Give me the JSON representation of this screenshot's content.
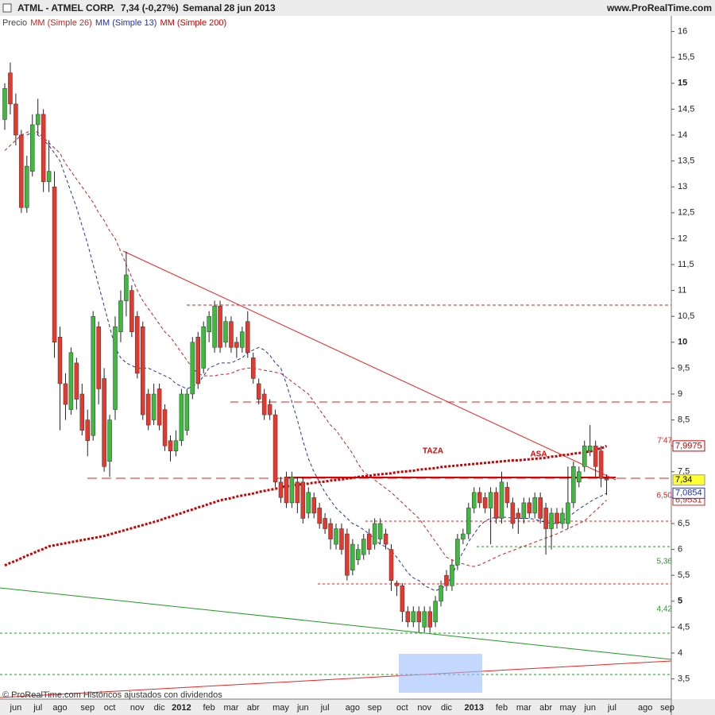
{
  "chart_data": {
    "type": "candlestick",
    "symbol": "ATML - ATMEL CORP.",
    "quote": "7,34 (-0,27%)",
    "period": "Semanal",
    "date": "28 jun 2013",
    "site": "www.ProRealTime.com",
    "footer": "© ProRealTime.com  Históricos ajustados con dividendos",
    "annotations": [
      "TAZA",
      "ASA",
      "7'47",
      "6,50",
      "5,36",
      "4,42"
    ],
    "ylim": [
      3.11,
      16.27
    ],
    "yticks": [
      {
        "value": 3.5,
        "label": "3,5"
      },
      4,
      {
        "value": 4.5,
        "label": "4,5"
      },
      5,
      {
        "value": 5.5,
        "label": "5,5"
      },
      6,
      {
        "value": 6.5,
        "label": "6,5"
      },
      7,
      {
        "value": 7.5,
        "label": "7,5"
      },
      8,
      {
        "value": 8.5,
        "label": "8,5"
      },
      9,
      {
        "value": 9.5,
        "label": "9,5"
      },
      10,
      {
        "value": 10.5,
        "label": "10,5"
      },
      11,
      {
        "value": 11.5,
        "label": "11,5"
      },
      12,
      {
        "value": 12.5,
        "label": "12,5"
      },
      13,
      {
        "value": 13.5,
        "label": "13,5"
      },
      14,
      {
        "value": 14.5,
        "label": "14,5"
      },
      15,
      {
        "value": 15.5,
        "label": "15,5"
      },
      16
    ],
    "categories": [
      null,
      null,
      "jun",
      null,
      null,
      null,
      "jul",
      null,
      null,
      null,
      "ago",
      null,
      null,
      null,
      null,
      "sep",
      null,
      null,
      null,
      "oct",
      null,
      null,
      null,
      null,
      "nov",
      null,
      null,
      null,
      "dic",
      null,
      null,
      null,
      "2012",
      null,
      null,
      null,
      null,
      "feb",
      null,
      null,
      null,
      "mar",
      null,
      null,
      null,
      "abr",
      null,
      null,
      null,
      null,
      "may",
      null,
      null,
      null,
      "jun",
      null,
      null,
      null,
      "jul",
      null,
      null,
      null,
      null,
      "ago",
      null,
      null,
      null,
      "sep",
      null,
      null,
      null,
      null,
      "oct",
      null,
      null,
      null,
      "nov",
      null,
      null,
      null,
      "dic",
      null,
      null,
      null,
      null,
      "2013",
      null,
      null,
      null,
      null,
      "feb",
      null,
      null,
      null,
      "mar",
      null,
      null,
      null,
      "abr",
      null,
      null,
      null,
      "may",
      null,
      null,
      null,
      "jun",
      null,
      null,
      null,
      "jul",
      null,
      null,
      null,
      null,
      null,
      "ago",
      null,
      null,
      null,
      "sep"
    ],
    "price": {
      "name": "Precio",
      "up_color": "#3dbb3d",
      "down_color": "#e8382e",
      "last_label": "7,34",
      "label_color": "#ffff33",
      "open": [
        14.3,
        15.2,
        14.6,
        14.0,
        12.6,
        13.3,
        14.2,
        14.4,
        13.1,
        13.0,
        10.1,
        9.2,
        8.7,
        9.6,
        9.0,
        8.5,
        8.2,
        10.3,
        9.3,
        7.7,
        8.7,
        10.2,
        10.8,
        11.0,
        10.5,
        10.3,
        9.0,
        8.5,
        9.1,
        8.7,
        8.1,
        7.9,
        8.1,
        8.3,
        9.0,
        10.1,
        9.5,
        10.2,
        9.9,
        10.7,
        10.0,
        10.4,
        10.0,
        9.9,
        10.4,
        9.7,
        9.2,
        9.0,
        8.8,
        8.6,
        7.3,
        7.4,
        6.9,
        7.3,
        7.3,
        6.7,
        7.0,
        6.8,
        6.6,
        6.5,
        6.1,
        6.4,
        6.3,
        5.6,
        5.8,
        5.9,
        6.3,
        6.1,
        6.2,
        6.3,
        6.0,
        5.35,
        5.3,
        4.8,
        4.6,
        4.8,
        4.5,
        4.8,
        4.6,
        5.0,
        5.5,
        5.3,
        5.7,
        6.2,
        6.3,
        6.8,
        7.1,
        7.0,
        6.8,
        7.1,
        6.6,
        7.2,
        6.9,
        6.7,
        6.6,
        6.9,
        6.7,
        7.0,
        6.8,
        6.4,
        6.7,
        6.5,
        6.5,
        6.9,
        7.3,
        7.6,
        7.9,
        8.0,
        7.9,
        7.37,
        null,
        null,
        null,
        null,
        null,
        null,
        null,
        null,
        null,
        null,
        null
      ],
      "high": [
        15.0,
        15.4,
        14.8,
        14.1,
        13.6,
        14.4,
        14.7,
        14.5,
        13.9,
        13.3,
        10.3,
        9.4,
        9.9,
        9.7,
        9.2,
        8.7,
        10.6,
        10.4,
        9.5,
        8.6,
        10.5,
        11.0,
        11.75,
        11.1,
        10.6,
        10.4,
        9.1,
        9.2,
        9.2,
        8.8,
        8.2,
        8.3,
        9.1,
        9.1,
        10.1,
        10.2,
        10.4,
        10.6,
        10.8,
        10.8,
        10.5,
        10.5,
        10.1,
        10.3,
        10.6,
        9.8,
        9.3,
        9.1,
        8.9,
        8.7,
        7.4,
        7.5,
        7.5,
        7.4,
        7.4,
        7.2,
        7.1,
        6.9,
        6.7,
        6.6,
        6.5,
        6.5,
        6.4,
        6.2,
        6.1,
        6.3,
        6.4,
        6.6,
        6.6,
        6.4,
        6.1,
        5.4,
        5.35,
        4.9,
        4.9,
        4.9,
        4.9,
        4.9,
        5.1,
        5.4,
        5.6,
        5.8,
        6.3,
        6.4,
        6.9,
        7.2,
        7.2,
        7.1,
        7.2,
        7.2,
        7.5,
        7.3,
        7.0,
        6.8,
        7.0,
        7.0,
        7.1,
        7.1,
        6.9,
        6.8,
        6.8,
        6.8,
        7.6,
        7.7,
        7.6,
        8.1,
        8.4,
        8.1,
        8.0,
        7.45,
        null,
        null,
        null,
        null,
        null,
        null,
        null,
        null,
        null,
        null,
        null
      ],
      "low": [
        14.1,
        14.4,
        13.8,
        12.5,
        12.5,
        13.2,
        14.0,
        12.9,
        12.9,
        9.7,
        8.3,
        8.5,
        8.6,
        8.7,
        8.2,
        7.8,
        8.1,
        8.8,
        7.5,
        7.4,
        8.5,
        10.0,
        10.5,
        10.1,
        9.3,
        8.5,
        8.3,
        8.4,
        8.3,
        7.9,
        7.7,
        7.8,
        8.0,
        8.2,
        8.9,
        9.1,
        9.4,
        10.0,
        9.8,
        9.8,
        9.9,
        9.8,
        9.7,
        9.8,
        9.7,
        9.2,
        8.8,
        8.5,
        8.5,
        7.2,
        6.9,
        6.8,
        6.8,
        6.7,
        6.5,
        6.6,
        6.6,
        6.4,
        6.3,
        6.0,
        6.0,
        5.9,
        5.4,
        5.5,
        5.7,
        5.8,
        5.9,
        6.0,
        6.1,
        6.0,
        5.2,
        5.1,
        4.6,
        4.5,
        4.5,
        4.4,
        4.4,
        4.4,
        4.5,
        4.9,
        5.2,
        5.2,
        5.6,
        6.1,
        6.2,
        6.7,
        6.8,
        6.7,
        6.1,
        6.5,
        6.5,
        6.8,
        6.4,
        6.3,
        6.5,
        6.6,
        6.6,
        6.5,
        5.9,
        6.0,
        6.4,
        6.4,
        6.4,
        6.8,
        7.2,
        7.5,
        7.8,
        7.4,
        7.2,
        7.05,
        null,
        null,
        null,
        null,
        null,
        null,
        null,
        null,
        null,
        null,
        null
      ],
      "close": [
        14.9,
        14.6,
        14.0,
        12.6,
        13.4,
        14.2,
        14.4,
        13.1,
        13.3,
        10.0,
        9.2,
        8.8,
        9.8,
        8.9,
        8.3,
        8.1,
        10.5,
        9.1,
        7.6,
        8.5,
        10.3,
        10.8,
        11.3,
        10.2,
        9.4,
        8.6,
        8.4,
        9.0,
        8.4,
        8.0,
        7.9,
        8.1,
        9.0,
        9.0,
        10.0,
        9.2,
        10.3,
        10.5,
        10.7,
        9.9,
        10.4,
        9.9,
        9.9,
        10.2,
        9.8,
        9.3,
        8.9,
        8.6,
        8.6,
        7.3,
        7.0,
        6.9,
        7.4,
        6.9,
        6.6,
        7.1,
        6.7,
        6.5,
        6.4,
        6.2,
        6.4,
        6.0,
        5.5,
        6.1,
        6.0,
        6.2,
        6.0,
        6.5,
        6.5,
        6.1,
        5.4,
        5.3,
        4.8,
        4.6,
        4.8,
        4.6,
        4.8,
        4.5,
        5.0,
        5.3,
        5.3,
        5.7,
        6.2,
        6.3,
        6.8,
        7.1,
        6.9,
        6.8,
        7.1,
        6.6,
        7.3,
        6.9,
        6.5,
        6.6,
        6.9,
        6.7,
        7.0,
        6.6,
        6.4,
        6.7,
        6.5,
        6.7,
        6.9,
        7.6,
        7.5,
        8.0,
        8.0,
        7.6,
        7.37,
        7.34,
        null,
        null,
        null,
        null,
        null,
        null,
        null,
        null,
        null,
        null,
        null
      ]
    },
    "series": [
      {
        "name": "MM (Simple 26)",
        "color": "#cc2222",
        "style": "dashed",
        "width": 1,
        "last_label": "6,9531",
        "values": [
          13.7,
          13.8,
          13.9,
          14.0,
          14.05,
          14.1,
          14.05,
          13.95,
          13.85,
          13.75,
          13.65,
          13.45,
          13.3,
          13.15,
          13.0,
          12.85,
          12.7,
          12.5,
          12.35,
          12.15,
          12.0,
          11.75,
          11.5,
          11.25,
          11.0,
          10.8,
          10.65,
          10.5,
          10.35,
          10.2,
          10.1,
          9.95,
          9.8,
          9.65,
          9.5,
          9.4,
          9.35,
          9.35,
          9.35,
          9.38,
          9.38,
          9.4,
          9.45,
          9.48,
          9.5,
          9.5,
          9.48,
          9.46,
          9.44,
          9.42,
          9.4,
          9.32,
          9.24,
          9.16,
          9.08,
          9.0,
          8.85,
          8.7,
          8.55,
          8.4,
          8.3,
          8.15,
          8.0,
          7.85,
          7.65,
          7.5,
          7.42,
          7.34,
          7.26,
          7.18,
          7.1,
          7.0,
          6.9,
          6.8,
          6.7,
          6.6,
          6.45,
          6.3,
          6.15,
          6.0,
          5.85,
          5.8,
          5.75,
          5.72,
          5.69,
          5.67,
          5.7,
          5.75,
          5.8,
          5.85,
          5.9,
          5.94,
          5.98,
          6.02,
          6.06,
          6.1,
          6.14,
          6.18,
          6.22,
          6.26,
          6.3,
          6.35,
          6.4,
          6.45,
          6.5,
          6.55,
          6.65,
          6.75,
          6.85,
          6.9531,
          null,
          null,
          null,
          null,
          null,
          null,
          null,
          null,
          null,
          null,
          null
        ]
      },
      {
        "name": "MM (Simple 13)",
        "color": "#2233aa",
        "style": "dashed",
        "width": 1,
        "last_label": "7,0854",
        "values": [
          null,
          null,
          null,
          null,
          14.0,
          14.05,
          14.0,
          13.9,
          13.8,
          13.65,
          13.5,
          13.2,
          12.9,
          12.6,
          12.25,
          11.9,
          11.5,
          11.1,
          10.7,
          10.3,
          9.9,
          9.7,
          9.6,
          9.55,
          9.5,
          9.5,
          9.5,
          9.45,
          9.4,
          9.35,
          9.3,
          9.2,
          9.15,
          9.1,
          9.15,
          9.2,
          9.35,
          9.5,
          9.55,
          9.6,
          9.6,
          9.6,
          9.65,
          9.7,
          9.8,
          9.85,
          9.9,
          9.85,
          9.75,
          9.6,
          9.5,
          9.2,
          8.85,
          8.5,
          8.1,
          7.75,
          7.5,
          7.3,
          7.1,
          6.95,
          6.8,
          6.7,
          6.6,
          6.5,
          6.45,
          6.38,
          6.3,
          6.2,
          6.1,
          6.05,
          5.97,
          5.85,
          5.7,
          5.55,
          5.45,
          5.4,
          5.3,
          5.25,
          5.2,
          5.25,
          5.3,
          5.5,
          5.75,
          5.95,
          6.15,
          6.3,
          6.45,
          6.55,
          6.6,
          6.62,
          6.62,
          6.62,
          6.6,
          6.6,
          6.6,
          6.6,
          6.58,
          6.55,
          6.52,
          6.5,
          6.5,
          6.55,
          6.62,
          6.7,
          6.78,
          6.85,
          6.92,
          6.98,
          7.03,
          7.0854,
          null,
          null,
          null,
          null,
          null,
          null,
          null,
          null,
          null,
          null,
          null
        ]
      },
      {
        "name": "MM (Simple 200)",
        "color": "#cc0000",
        "style": "dotted",
        "width": 3,
        "last_label": "7,9975",
        "values": [
          5.69,
          5.74,
          5.78,
          5.83,
          5.88,
          5.92,
          5.97,
          6.01,
          6.06,
          6.08,
          6.1,
          6.12,
          6.14,
          6.16,
          6.18,
          6.2,
          6.22,
          6.24,
          6.26,
          6.29,
          6.32,
          6.35,
          6.38,
          6.41,
          6.44,
          6.47,
          6.5,
          6.53,
          6.56,
          6.6,
          6.63,
          6.67,
          6.7,
          6.74,
          6.77,
          6.81,
          6.84,
          6.88,
          6.91,
          6.95,
          6.97,
          6.99,
          7.02,
          7.04,
          7.06,
          7.08,
          7.11,
          7.13,
          7.15,
          7.17,
          7.2,
          7.22,
          7.23,
          7.25,
          7.26,
          7.27,
          7.29,
          7.3,
          7.31,
          7.33,
          7.34,
          7.35,
          7.37,
          7.38,
          7.4,
          7.41,
          7.42,
          7.44,
          7.45,
          7.46,
          7.47,
          7.49,
          7.5,
          7.51,
          7.52,
          7.54,
          7.55,
          7.56,
          7.57,
          7.59,
          7.6,
          7.61,
          7.62,
          7.63,
          7.64,
          7.65,
          7.66,
          7.67,
          7.68,
          7.69,
          7.7,
          7.71,
          7.72,
          7.72,
          7.73,
          7.74,
          7.75,
          7.76,
          7.77,
          7.79,
          7.8,
          7.82,
          7.83,
          7.85,
          7.86,
          7.88,
          7.89,
          7.93,
          7.95,
          7.9975,
          null,
          null,
          null,
          null,
          null,
          null,
          null,
          null,
          null,
          null,
          null
        ]
      }
    ]
  }
}
